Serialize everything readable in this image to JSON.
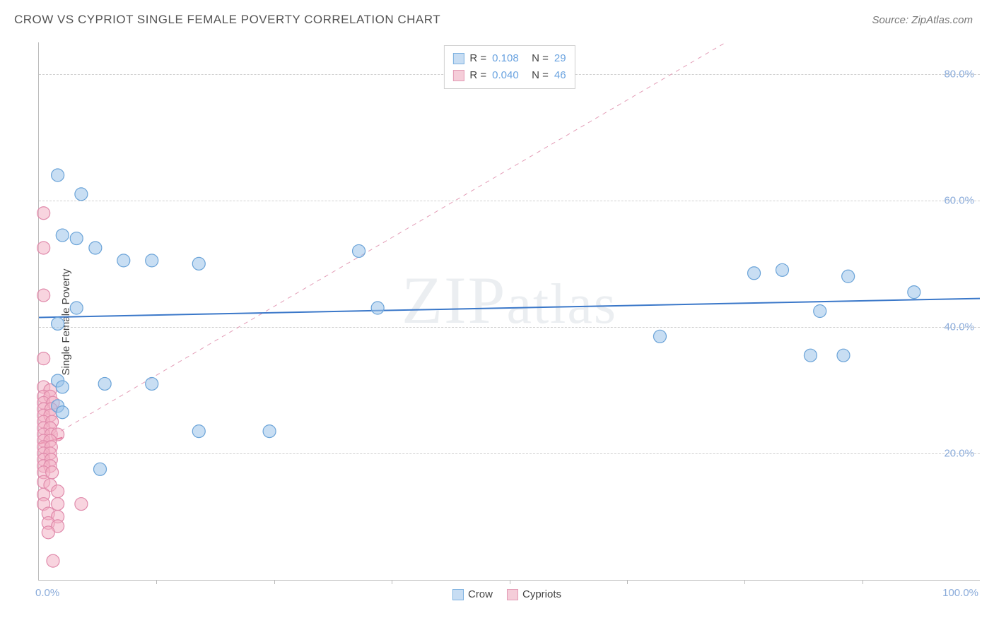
{
  "header": {
    "title": "CROW VS CYPRIOT SINGLE FEMALE POVERTY CORRELATION CHART",
    "source": "Source: ZipAtlas.com"
  },
  "chart": {
    "type": "scatter",
    "ylabel": "Single Female Poverty",
    "watermark": "ZIPatlas",
    "xlim": [
      0,
      100
    ],
    "ylim": [
      0,
      85
    ],
    "xtick_major": [
      0,
      100
    ],
    "xtick_minor": [
      12.5,
      25,
      37.5,
      50,
      62.5,
      75,
      87.5
    ],
    "ytick_labels": [
      20,
      40,
      60,
      80
    ],
    "x_label_min": "0.0%",
    "x_label_max": "100.0%",
    "grid_color": "#d0d0d0",
    "axis_color": "#bbbbbb",
    "tick_label_color": "#8aabda",
    "background_color": "#ffffff",
    "point_radius": 9,
    "series": {
      "crow": {
        "label": "Crow",
        "fill": "rgba(154,195,234,0.55)",
        "stroke": "#6aa3d8",
        "swatch_fill": "#c7ddf3",
        "swatch_stroke": "#7db1e0",
        "R": "0.108",
        "N": "29",
        "trend": {
          "x1": 0,
          "y1": 41.5,
          "x2": 100,
          "y2": 44.5,
          "color": "#3b78c9"
        },
        "points": [
          [
            2,
            64
          ],
          [
            4.5,
            61
          ],
          [
            2.5,
            54.5
          ],
          [
            4,
            54
          ],
          [
            6,
            52.5
          ],
          [
            9,
            50.5
          ],
          [
            12,
            50.5
          ],
          [
            17,
            50
          ],
          [
            34,
            52
          ],
          [
            4,
            43
          ],
          [
            2,
            40.5
          ],
          [
            36,
            43
          ],
          [
            7,
            31
          ],
          [
            2,
            31.5
          ],
          [
            2.5,
            30.5
          ],
          [
            12,
            31
          ],
          [
            2,
            27.5
          ],
          [
            2.5,
            26.5
          ],
          [
            17,
            23.5
          ],
          [
            24.5,
            23.5
          ],
          [
            6.5,
            17.5
          ],
          [
            76,
            48.5
          ],
          [
            79,
            49
          ],
          [
            86,
            48
          ],
          [
            93,
            45.5
          ],
          [
            83,
            42.5
          ],
          [
            66,
            38.5
          ],
          [
            82,
            35.5
          ],
          [
            85.5,
            35.5
          ]
        ]
      },
      "cypriots": {
        "label": "Cypriots",
        "fill": "rgba(243,176,196,0.55)",
        "stroke": "#e08aab",
        "swatch_fill": "#f5cdd9",
        "swatch_stroke": "#e39cb6",
        "R": "0.040",
        "N": "46",
        "trend": {
          "x1": 0,
          "y1": 21.5,
          "x2": 2.5,
          "y2": 22.5,
          "color": "#d6336c"
        },
        "diag": {
          "x1": 0,
          "y1": 21.5,
          "x2": 73,
          "y2": 85,
          "color": "#e39cb6"
        },
        "points": [
          [
            0.5,
            58
          ],
          [
            0.5,
            52.5
          ],
          [
            0.5,
            45
          ],
          [
            0.5,
            35
          ],
          [
            0.5,
            30.5
          ],
          [
            1.2,
            30
          ],
          [
            0.5,
            29
          ],
          [
            1.2,
            29
          ],
          [
            0.5,
            28
          ],
          [
            1.5,
            28
          ],
          [
            0.5,
            27
          ],
          [
            1.3,
            27
          ],
          [
            0.5,
            26
          ],
          [
            1.2,
            26
          ],
          [
            0.5,
            25
          ],
          [
            1.4,
            25
          ],
          [
            0.5,
            24
          ],
          [
            1.2,
            24
          ],
          [
            0.5,
            23
          ],
          [
            1.3,
            23
          ],
          [
            2,
            23
          ],
          [
            0.5,
            22
          ],
          [
            1.2,
            22
          ],
          [
            0.5,
            21
          ],
          [
            1.3,
            21
          ],
          [
            0.5,
            20
          ],
          [
            1.2,
            20
          ],
          [
            0.5,
            19
          ],
          [
            1.3,
            19
          ],
          [
            0.5,
            18
          ],
          [
            1.2,
            18
          ],
          [
            0.5,
            17
          ],
          [
            1.4,
            17
          ],
          [
            0.5,
            15.5
          ],
          [
            1.2,
            15
          ],
          [
            0.5,
            13.5
          ],
          [
            2,
            14
          ],
          [
            0.5,
            12
          ],
          [
            2,
            12
          ],
          [
            4.5,
            12
          ],
          [
            1,
            10.5
          ],
          [
            2,
            10
          ],
          [
            1,
            9
          ],
          [
            2,
            8.5
          ],
          [
            1,
            7.5
          ],
          [
            1.5,
            3
          ]
        ]
      }
    }
  }
}
